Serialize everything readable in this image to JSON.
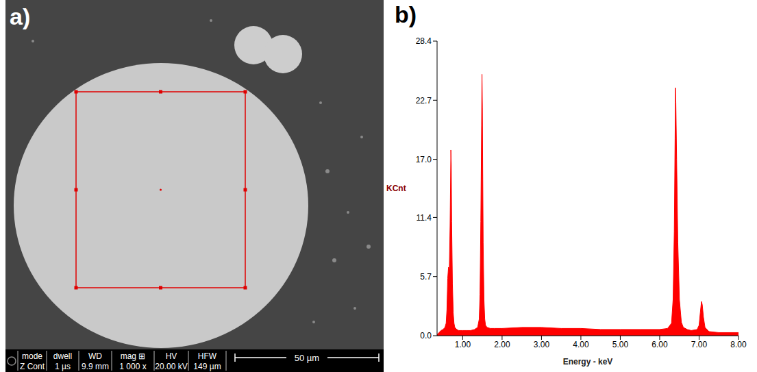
{
  "image": {
    "label": "a)",
    "info_bar": {
      "headers": [
        "mode",
        "dwell",
        "WD",
        "mag ⊞",
        "HV",
        "HFW"
      ],
      "values": [
        "Z Cont",
        "1 µs",
        "9.9 mm",
        "1 000 x",
        "20.00 kV",
        "149 µm"
      ]
    },
    "scale_bar": "50 µm"
  },
  "chart_data": {
    "label": "b)",
    "type": "area",
    "x_label": "Energy - keV",
    "y_label": "KCnt",
    "color": "#ff0000",
    "xlim": [
      0.35,
      8.0
    ],
    "xticks": [
      {
        "value": 1,
        "label": "1.00"
      },
      {
        "value": 2,
        "label": "2.00"
      },
      {
        "value": 3,
        "label": "3.00"
      },
      {
        "value": 4,
        "label": "4.00"
      },
      {
        "value": 5,
        "label": "5.00"
      },
      {
        "value": 6,
        "label": "6.00"
      },
      {
        "value": 7,
        "label": "7.00"
      },
      {
        "value": 8,
        "label": "8.00"
      }
    ],
    "ylim": [
      0,
      28.4
    ],
    "yticks": [
      {
        "value": 0,
        "label": "0.0"
      },
      5.7,
      11.4,
      {
        "value": 17,
        "label": "17.0"
      },
      22.7,
      28.4
    ],
    "x": [
      0.35,
      0.4,
      0.45,
      0.5,
      0.55,
      0.58,
      0.6,
      0.62,
      0.64,
      0.66,
      0.68,
      0.7,
      0.71,
      0.72,
      0.74,
      0.76,
      0.78,
      0.8,
      0.85,
      0.9,
      1.0,
      1.1,
      1.2,
      1.3,
      1.38,
      1.42,
      1.44,
      1.46,
      1.48,
      1.49,
      1.5,
      1.51,
      1.52,
      1.54,
      1.56,
      1.58,
      1.62,
      1.7,
      1.8,
      2.0,
      2.5,
      3.0,
      3.5,
      4.0,
      4.5,
      5.0,
      5.5,
      6.0,
      6.2,
      6.3,
      6.34,
      6.37,
      6.39,
      6.4,
      6.41,
      6.43,
      6.46,
      6.5,
      6.55,
      6.6,
      6.7,
      6.8,
      6.95,
      7.0,
      7.03,
      7.06,
      7.08,
      7.11,
      7.15,
      7.25,
      7.5,
      8.0
    ],
    "values": [
      0.1,
      0.3,
      0.5,
      0.6,
      0.8,
      1.2,
      2.5,
      5.5,
      6.6,
      6.2,
      10.5,
      17.9,
      16.5,
      11.0,
      5.0,
      2.2,
      1.2,
      0.8,
      0.6,
      0.5,
      0.5,
      0.5,
      0.5,
      0.6,
      0.8,
      1.6,
      4.0,
      11.0,
      20.3,
      25.2,
      22.0,
      15.0,
      9.0,
      3.5,
      1.6,
      1.0,
      0.8,
      0.7,
      0.7,
      0.7,
      0.8,
      0.8,
      0.7,
      0.7,
      0.6,
      0.6,
      0.6,
      0.6,
      0.7,
      1.2,
      3.5,
      10.0,
      19.0,
      23.9,
      22.5,
      17.0,
      9.0,
      3.5,
      1.3,
      0.8,
      0.6,
      0.5,
      0.6,
      1.0,
      2.2,
      3.3,
      3.0,
      1.8,
      0.8,
      0.4,
      0.3,
      0.3
    ]
  }
}
